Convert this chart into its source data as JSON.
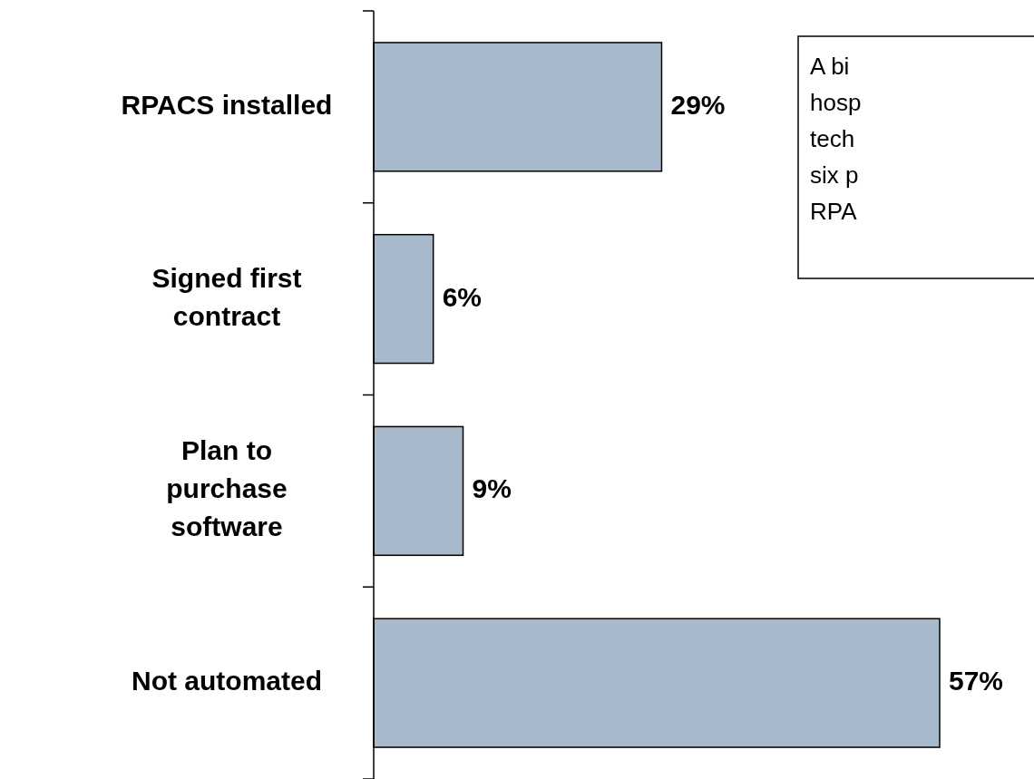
{
  "chart_data": {
    "type": "bar",
    "orientation": "horizontal",
    "categories": [
      "RPACS installed",
      "Signed first\ncontract",
      "Plan to\npurchase\nsoftware",
      "Not automated"
    ],
    "values": [
      29,
      6,
      9,
      57
    ],
    "color": "#a9b9cc",
    "data_labels": true,
    "value_labels": [
      "29%",
      "6%",
      "9%",
      "57%"
    ],
    "annotations": [
      "A bi\nhosp\ntech\nsix p\nRPA"
    ]
  }
}
